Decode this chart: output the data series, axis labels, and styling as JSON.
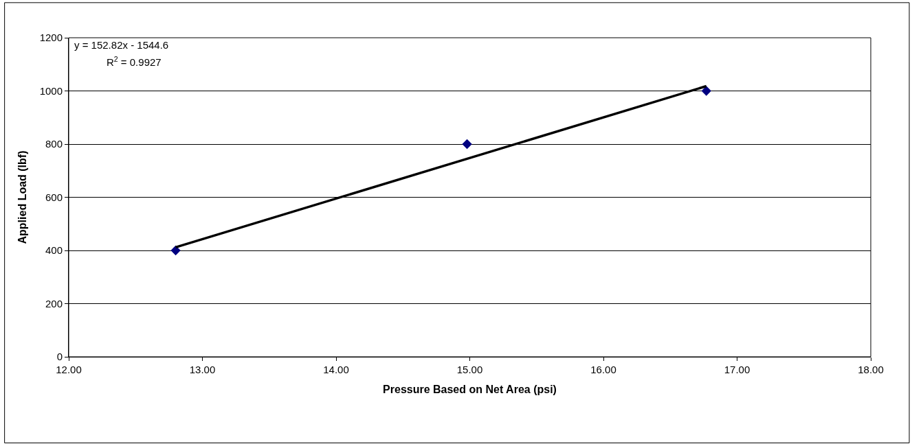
{
  "chart_data": {
    "type": "scatter",
    "xlabel": "Pressure Based on Net Area (psi)",
    "ylabel": "Applied Load (lbf)",
    "series": [
      {
        "color": "#000080",
        "marker": "diamond",
        "x": [
          12.8,
          14.98,
          16.77
        ],
        "values": [
          400,
          800,
          1000
        ]
      },
      {
        "type": "line",
        "color": "#000000",
        "marker": "none",
        "x": [
          12.8,
          16.77
        ],
        "values": [
          412,
          1018
        ]
      }
    ],
    "annotations": [
      "y = 152.82x - 1544.6",
      "R$^{2}$ = 0.9927"
    ],
    "xlim": [
      12,
      18
    ],
    "xticks": [
      {
        "value": 12,
        "label": "12.00"
      },
      {
        "value": 13,
        "label": "13.00"
      },
      {
        "value": 14,
        "label": "14.00"
      },
      {
        "value": 15,
        "label": "15.00"
      },
      {
        "value": 16,
        "label": "16.00"
      },
      {
        "value": 17,
        "label": "17.00"
      },
      {
        "value": 18,
        "label": "18.00"
      }
    ],
    "ylim": [
      0,
      1200
    ],
    "yticks": [
      0,
      200,
      400,
      600,
      800,
      1000,
      1200
    ],
    "grid": "y"
  }
}
